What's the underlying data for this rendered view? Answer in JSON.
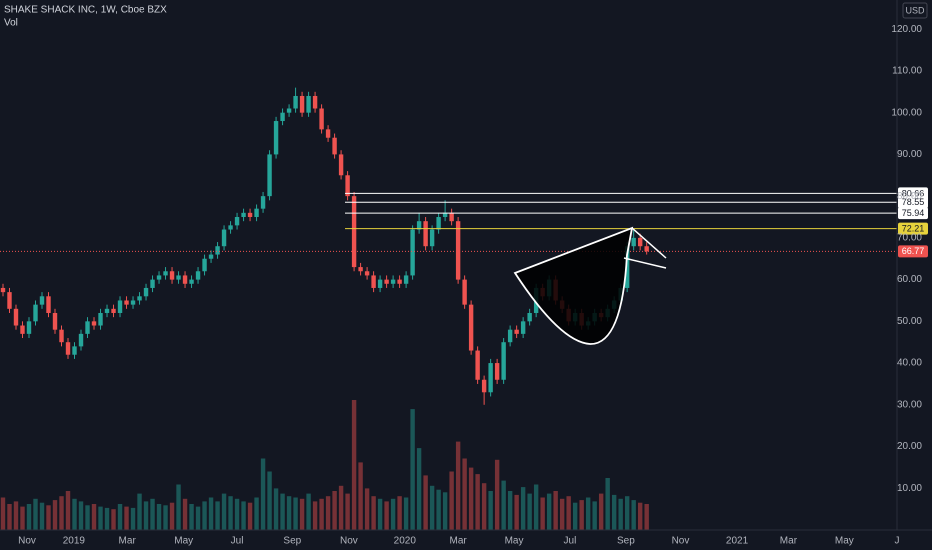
{
  "chart_data": {
    "type": "candlestick",
    "title": "SHAKE SHACK INC, 1W, Cboe BZX",
    "subtitle": "Vol",
    "currency": "USD",
    "up_color": "#26a69a",
    "down_color": "#ef5350",
    "level_color": "#ffffff",
    "target_color": "#e6d23c",
    "grid": true,
    "ylim": [
      0,
      127
    ],
    "yticks": [
      {
        "value": 10,
        "label": "10.00"
      },
      {
        "value": 20,
        "label": "20.00"
      },
      {
        "value": 30,
        "label": "30.00"
      },
      {
        "value": 40,
        "label": "40.00"
      },
      {
        "value": 50,
        "label": "50.00"
      },
      {
        "value": 60,
        "label": "60.00"
      },
      {
        "value": 70,
        "label": "70.00"
      },
      {
        "value": 80,
        "label": "80.00"
      },
      {
        "value": 90,
        "label": "90.00"
      },
      {
        "value": 100,
        "label": "100.00"
      },
      {
        "value": 110,
        "label": "110.00"
      },
      {
        "value": 120,
        "label": "120.00"
      }
    ],
    "xlim": [
      -0.46,
      137.5
    ],
    "xticks": [
      {
        "value": 3.7,
        "label": "Nov"
      },
      {
        "value": 10.9,
        "label": "2019"
      },
      {
        "value": 19.1,
        "label": "Mar"
      },
      {
        "value": 27.8,
        "label": "May"
      },
      {
        "value": 36,
        "label": "Jul"
      },
      {
        "value": 44.5,
        "label": "Sep"
      },
      {
        "value": 53.2,
        "label": "Nov"
      },
      {
        "value": 61.8,
        "label": "2020"
      },
      {
        "value": 70,
        "label": "Mar"
      },
      {
        "value": 78.6,
        "label": "May"
      },
      {
        "value": 87.2,
        "label": "Jul"
      },
      {
        "value": 95.8,
        "label": "Sep"
      },
      {
        "value": 104.2,
        "label": "Nov"
      },
      {
        "value": 112.9,
        "label": "2021"
      },
      {
        "value": 120.8,
        "label": "Mar"
      },
      {
        "value": 129.4,
        "label": "May"
      },
      {
        "value": 137.5,
        "label": "J"
      }
    ],
    "levels": [
      80.66,
      78.55,
      75.94
    ],
    "target": 72.21,
    "x": [
      0,
      1,
      2,
      3,
      4,
      5,
      6,
      7,
      8,
      9,
      10,
      11,
      12,
      13,
      14,
      15,
      16,
      17,
      18,
      19,
      20,
      21,
      22,
      23,
      24,
      25,
      26,
      27,
      28,
      29,
      30,
      31,
      32,
      33,
      34,
      35,
      36,
      37,
      38,
      39,
      40,
      41,
      42,
      43,
      44,
      45,
      46,
      47,
      48,
      49,
      50,
      51,
      52,
      53,
      54,
      55,
      56,
      57,
      58,
      59,
      60,
      61,
      62,
      63,
      64,
      65,
      66,
      67,
      68,
      69,
      70,
      71,
      72,
      73,
      74,
      75,
      76,
      77,
      78,
      79,
      80,
      81,
      82,
      83,
      84,
      85,
      86,
      87,
      88,
      89,
      90,
      91,
      92,
      93,
      94,
      95,
      96,
      97,
      98,
      99
    ],
    "open": [
      58,
      57,
      53,
      49,
      47,
      50,
      54,
      56,
      52,
      48,
      45,
      42,
      44,
      47,
      50,
      49,
      52,
      53,
      52,
      55,
      54,
      55,
      56,
      58,
      60,
      61,
      62,
      60,
      61,
      59,
      60,
      62,
      65,
      66,
      68,
      72,
      73,
      75,
      76,
      75,
      77,
      80,
      90,
      98,
      100,
      101,
      104,
      100,
      104,
      101,
      96,
      94,
      90,
      85,
      80,
      63,
      62,
      61,
      58,
      60,
      59,
      60,
      59,
      61,
      72,
      74,
      68,
      72,
      75,
      76,
      74,
      60,
      54,
      43,
      36,
      33,
      40,
      36,
      45,
      48,
      47,
      50,
      52,
      58,
      56,
      60,
      55,
      53,
      50,
      52,
      49,
      50,
      52,
      51,
      53,
      55,
      58,
      68,
      70,
      68
    ],
    "high": [
      59,
      58,
      54,
      50,
      51,
      55,
      57,
      57,
      53,
      49,
      46,
      45,
      48,
      51,
      51,
      53,
      54,
      54,
      56,
      56,
      56,
      57,
      59,
      61,
      62,
      63,
      63,
      62,
      62,
      61,
      63,
      66,
      67,
      69,
      73,
      74,
      76,
      77,
      77,
      78,
      81,
      91,
      99,
      101,
      102,
      106,
      105,
      105,
      105,
      102,
      97,
      95,
      91,
      86,
      81,
      64,
      63,
      62,
      61,
      61,
      61,
      61,
      62,
      73,
      76,
      75,
      73,
      76,
      79,
      77,
      75,
      61,
      55,
      44,
      37,
      41,
      41,
      46,
      49,
      49,
      51,
      53,
      59,
      59,
      61,
      61,
      56,
      54,
      53,
      53,
      51,
      53,
      53,
      54,
      56,
      59,
      69,
      72,
      71,
      69
    ],
    "low": [
      56,
      52,
      48,
      46,
      46,
      49,
      53,
      51,
      47,
      44,
      41,
      41,
      43,
      46,
      48,
      48,
      51,
      51,
      51,
      53,
      53,
      54,
      55,
      57,
      59,
      60,
      59,
      59,
      58,
      58,
      59,
      61,
      64,
      65,
      67,
      71,
      72,
      74,
      74,
      74,
      76,
      79,
      89,
      97,
      99,
      100,
      99,
      99,
      100,
      95,
      93,
      89,
      84,
      79,
      62,
      61,
      60,
      57,
      57,
      58,
      58,
      58,
      58,
      60,
      71,
      67,
      67,
      71,
      74,
      73,
      59,
      53,
      42,
      35,
      30,
      32,
      35,
      35,
      44,
      46,
      46,
      49,
      51,
      55,
      55,
      54,
      52,
      49,
      49,
      48,
      48,
      49,
      50,
      50,
      52,
      54,
      57,
      67,
      67,
      66
    ],
    "close": [
      57,
      53,
      49,
      47,
      50,
      54,
      56,
      52,
      48,
      45,
      42,
      44,
      47,
      50,
      49,
      52,
      53,
      52,
      55,
      54,
      55,
      56,
      58,
      60,
      61,
      62,
      60,
      61,
      59,
      60,
      62,
      65,
      66,
      68,
      72,
      73,
      75,
      76,
      75,
      77,
      80,
      90,
      98,
      100,
      101,
      104,
      100,
      104,
      101,
      96,
      94,
      90,
      85,
      80,
      63,
      62,
      61,
      58,
      60,
      59,
      60,
      59,
      61,
      72,
      74,
      68,
      72,
      75,
      76,
      74,
      60,
      54,
      43,
      36,
      33,
      40,
      36,
      45,
      48,
      47,
      50,
      52,
      58,
      56,
      60,
      55,
      53,
      50,
      52,
      49,
      50,
      52,
      51,
      53,
      55,
      58,
      68,
      70,
      68,
      66.77
    ],
    "volume": [
      2.5,
      2,
      2.2,
      1.8,
      2,
      2.4,
      2.1,
      1.9,
      2.3,
      2.6,
      3,
      2.4,
      2.2,
      1.9,
      2,
      1.8,
      1.7,
      1.6,
      2,
      1.8,
      1.7,
      2.8,
      2.2,
      2.4,
      2,
      1.9,
      2.1,
      3.5,
      2.4,
      2,
      1.8,
      2.2,
      2.5,
      2.2,
      2.8,
      2.6,
      2.4,
      2.2,
      2.1,
      2.5,
      5.5,
      4.5,
      3.2,
      2.8,
      2.6,
      2.5,
      2.4,
      2.8,
      2.2,
      2.4,
      2.6,
      3,
      3.4,
      2.8,
      10,
      5.2,
      3.2,
      2.6,
      2.4,
      2.2,
      2.4,
      2.6,
      2.5,
      9.3,
      6.3,
      4.2,
      3.4,
      3.1,
      2.9,
      4.5,
      6.8,
      5.5,
      4.8,
      4.3,
      3.6,
      3,
      5.4,
      3.8,
      3,
      2.7,
      3.3,
      2.8,
      3.5,
      2.5,
      2.8,
      3,
      2.4,
      2.6,
      2.1,
      2.3,
      2.5,
      2.2,
      2.8,
      4,
      2.7,
      2.4,
      2.6,
      2.3,
      2.1,
      2
    ]
  }
}
